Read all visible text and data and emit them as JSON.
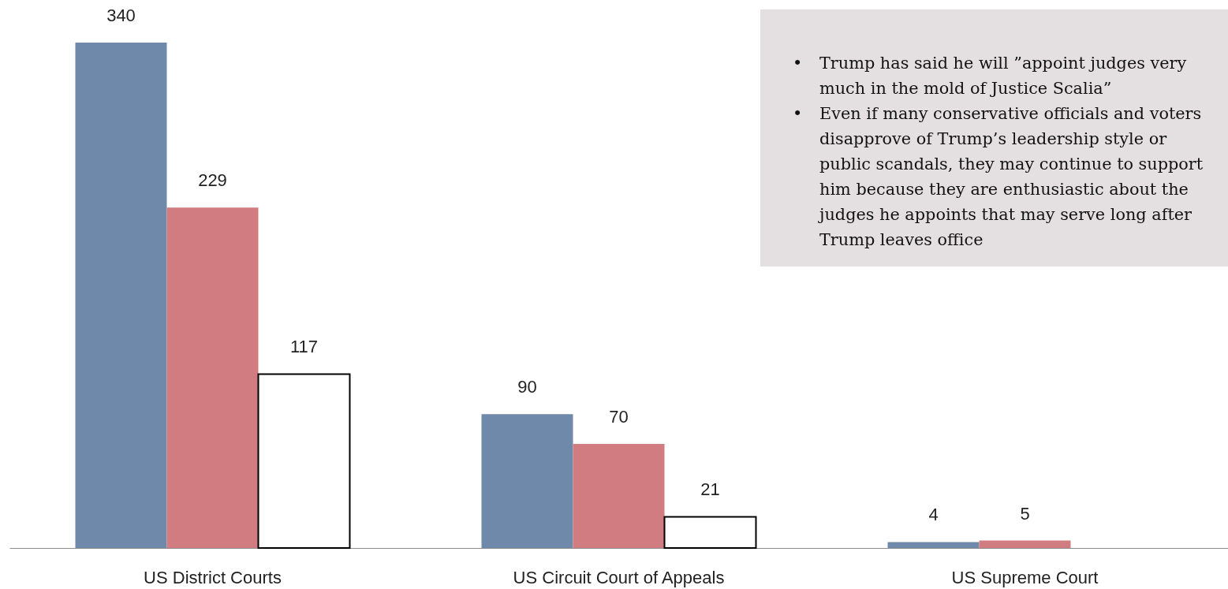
{
  "chart_data": {
    "type": "bar",
    "categories": [
      "US District Courts",
      "US Circuit Court of Appeals",
      "US Supreme Court"
    ],
    "series": [
      {
        "color": "#6e89aa",
        "values": [
          340,
          90,
          4
        ]
      },
      {
        "color": "#d07c80",
        "values": [
          229,
          70,
          5
        ]
      },
      {
        "color": "#ffffff",
        "values": [
          117,
          21,
          null
        ]
      }
    ],
    "data_labels": true,
    "tick_labels": "x",
    "annotations": [
      "• Trump has said he will ”appoint judges very much in the mold of Justice Scalia”",
      "• Even if many conservative officials and voters disapprove of Trump’s leadership style or public scandals, they may continue to support him because they are enthusiastic about the judges he appoints that may serve long after Trump leaves office"
    ]
  }
}
